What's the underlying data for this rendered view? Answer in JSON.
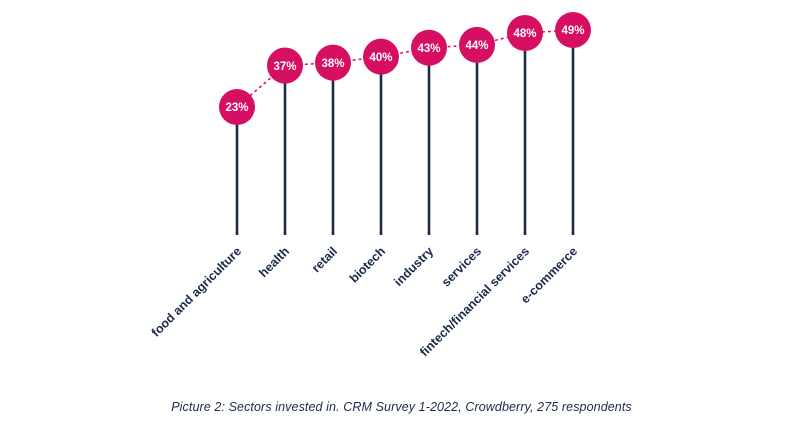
{
  "chart_data": {
    "type": "bar",
    "variant": "lollipop",
    "categories": [
      "food and agriculture",
      "health",
      "retail",
      "biotech",
      "industry",
      "services",
      "fintech/financial services",
      "e-commerce"
    ],
    "values": [
      23,
      37,
      38,
      40,
      43,
      44,
      48,
      49
    ],
    "value_suffix": "%",
    "title": "",
    "xlabel": "",
    "ylabel": "",
    "grid": false,
    "legend": "none",
    "background": "#ffffff",
    "caption": "Picture 2: Sectors invested in. CRM Survey 1-2022, Crowdberry, 275 respondents",
    "colors": {
      "dot": "#d60f63",
      "stem": "#1b2a4a",
      "label": "#1b2a4a",
      "trend": "#d60f63",
      "value_text": "#ffffff"
    }
  }
}
